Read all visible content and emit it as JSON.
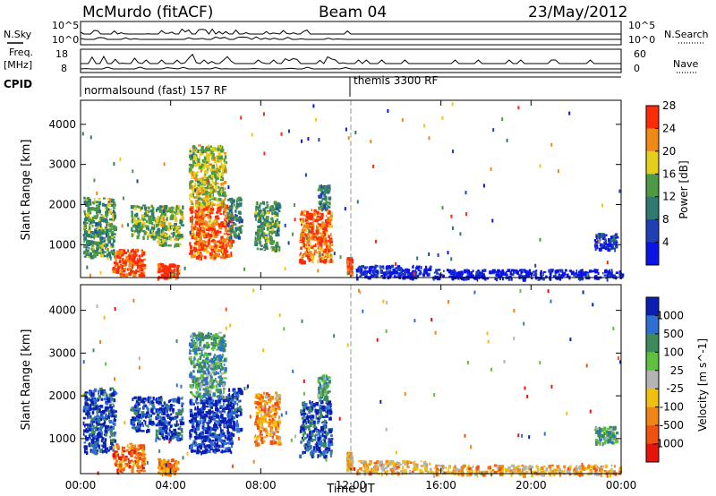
{
  "header": {
    "site": "McMurdo (fitACF)",
    "beam": "Beam 04",
    "date": "23/May/2012"
  },
  "top_panels": {
    "nsky_label": "N.Sky",
    "nsky_ticks": [
      "10^5",
      "10^0"
    ],
    "nsearch_label": "N.Search",
    "nsearch_ticks": [
      "10^5",
      "10^0"
    ],
    "freq_label_1": "Freq.",
    "freq_label_2": "[MHz]",
    "freq_ticks": [
      "18",
      "8"
    ],
    "nave_label": "Nave",
    "nave_ticks": [
      "60",
      "0"
    ],
    "cpid_label": "CPID",
    "cpid_modes": [
      "normalsound (fast) 157 RF",
      "themis 3300 RF"
    ]
  },
  "chart_data": [
    {
      "type": "heatmap",
      "title": "",
      "xlabel": "Time UT",
      "ylabel": "Slant Range [km]",
      "xlim": [
        0,
        24
      ],
      "ylim": [
        180,
        4600
      ],
      "x_ticks": [
        "00:00",
        "04:00",
        "08:00",
        "12:00",
        "16:00",
        "20:00",
        "00:00"
      ],
      "y_ticks": [
        1000,
        2000,
        3000,
        4000
      ],
      "colorbar": {
        "label": "Power [dB]",
        "ticks": [
          "4",
          "8",
          "12",
          "16",
          "20",
          "24",
          "28"
        ],
        "colors": [
          "#0a14e6",
          "#1f3fb4",
          "#2e7a6e",
          "#4e9a44",
          "#e6cf1c",
          "#f08a16",
          "#ff2a06"
        ]
      },
      "mode_change_ut": 12.0,
      "patches": [
        {
          "t0": 0.1,
          "t1": 1.5,
          "r0": 700,
          "r1": 2200,
          "level": 0.45
        },
        {
          "t0": 1.4,
          "t1": 2.8,
          "r0": 250,
          "r1": 900,
          "level": 0.9
        },
        {
          "t0": 2.2,
          "t1": 3.2,
          "r0": 1200,
          "r1": 2000,
          "level": 0.5
        },
        {
          "t0": 3.3,
          "t1": 4.5,
          "r0": 1000,
          "r1": 2000,
          "level": 0.55
        },
        {
          "t0": 3.4,
          "t1": 4.3,
          "r0": 200,
          "r1": 550,
          "level": 0.95
        },
        {
          "t0": 4.8,
          "t1": 6.7,
          "r0": 700,
          "r1": 2000,
          "level": 0.85
        },
        {
          "t0": 4.8,
          "t1": 6.4,
          "r0": 2000,
          "r1": 3500,
          "level": 0.6
        },
        {
          "t0": 6.5,
          "t1": 7.1,
          "r0": 1200,
          "r1": 2200,
          "level": 0.4
        },
        {
          "t0": 7.7,
          "t1": 8.8,
          "r0": 900,
          "r1": 2100,
          "level": 0.45
        },
        {
          "t0": 9.7,
          "t1": 11.1,
          "r0": 600,
          "r1": 1900,
          "level": 0.85
        },
        {
          "t0": 10.5,
          "t1": 11.0,
          "r0": 1900,
          "r1": 2500,
          "level": 0.4
        },
        {
          "t0": 11.8,
          "t1": 12.0,
          "r0": 300,
          "r1": 700,
          "level": 1.0
        },
        {
          "t0": 12.2,
          "t1": 15.5,
          "r0": 200,
          "r1": 500,
          "level": 0.1
        },
        {
          "t0": 15.5,
          "t1": 24.0,
          "r0": 180,
          "r1": 400,
          "level": 0.05
        },
        {
          "t0": 22.8,
          "t1": 23.8,
          "r0": 900,
          "r1": 1300,
          "level": 0.15
        }
      ]
    },
    {
      "type": "heatmap",
      "title": "",
      "xlabel": "Time UT",
      "ylabel": "Slant Range [km]",
      "xlim": [
        0,
        24
      ],
      "ylim": [
        180,
        4600
      ],
      "x_ticks": [
        "00:00",
        "04:00",
        "08:00",
        "12:00",
        "16:00",
        "20:00",
        "00:00"
      ],
      "y_ticks": [
        1000,
        2000,
        3000,
        4000
      ],
      "colorbar": {
        "label": "Velocity [m s^-1]",
        "ticks": [
          "1000",
          "500",
          "100",
          "25",
          "-25",
          "-100",
          "-500",
          "-1000"
        ],
        "colors": [
          "#0a1eb4",
          "#2f6fd2",
          "#3d8a5a",
          "#5fc040",
          "#b4b4b4",
          "#f0c010",
          "#f08414",
          "#f05010",
          "#e8140a"
        ]
      },
      "mode_change_ut": 12.0,
      "patches": [
        {
          "t0": 0.1,
          "t1": 1.5,
          "r0": 700,
          "r1": 2200,
          "level": 0.1
        },
        {
          "t0": 1.4,
          "t1": 2.8,
          "r0": 250,
          "r1": 900,
          "level": 0.8
        },
        {
          "t0": 2.2,
          "t1": 3.2,
          "r0": 1200,
          "r1": 2000,
          "level": 0.1
        },
        {
          "t0": 3.3,
          "t1": 4.5,
          "r0": 1000,
          "r1": 2000,
          "level": 0.1
        },
        {
          "t0": 3.4,
          "t1": 4.3,
          "r0": 200,
          "r1": 550,
          "level": 0.75
        },
        {
          "t0": 4.8,
          "t1": 6.7,
          "r0": 700,
          "r1": 2000,
          "level": 0.05
        },
        {
          "t0": 4.8,
          "t1": 6.4,
          "r0": 2000,
          "r1": 3500,
          "level": 0.3
        },
        {
          "t0": 6.5,
          "t1": 7.1,
          "r0": 1200,
          "r1": 2200,
          "level": 0.1
        },
        {
          "t0": 7.7,
          "t1": 8.8,
          "r0": 900,
          "r1": 2100,
          "level": 0.7
        },
        {
          "t0": 9.7,
          "t1": 11.1,
          "r0": 600,
          "r1": 1900,
          "level": 0.15
        },
        {
          "t0": 10.5,
          "t1": 11.0,
          "r0": 1900,
          "r1": 2500,
          "level": 0.3
        },
        {
          "t0": 11.8,
          "t1": 12.0,
          "r0": 300,
          "r1": 700,
          "level": 0.6
        },
        {
          "t0": 12.2,
          "t1": 15.5,
          "r0": 200,
          "r1": 500,
          "level": 0.62
        },
        {
          "t0": 15.5,
          "t1": 24.0,
          "r0": 180,
          "r1": 400,
          "level": 0.65
        },
        {
          "t0": 22.8,
          "t1": 23.8,
          "r0": 900,
          "r1": 1300,
          "level": 0.3
        }
      ]
    }
  ]
}
